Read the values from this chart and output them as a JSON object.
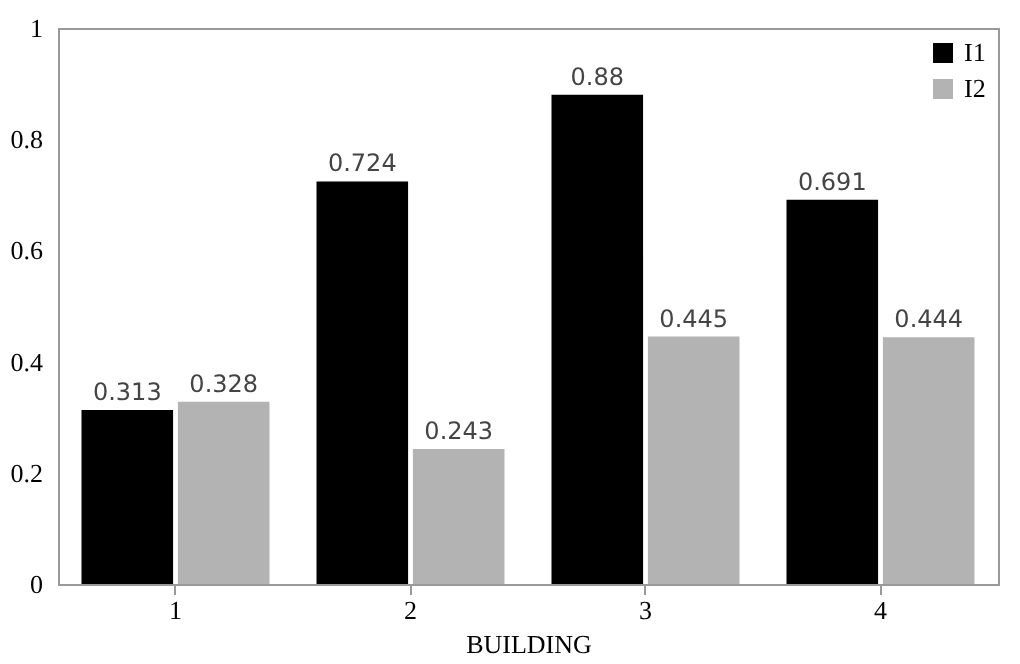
{
  "chart_data": {
    "type": "bar",
    "xlabel": "BUILDING",
    "categories": [
      "1",
      "2",
      "3",
      "4"
    ],
    "series": [
      {
        "name": "I1",
        "color": "#000000",
        "values": [
          0.313,
          0.724,
          0.88,
          0.691
        ]
      },
      {
        "name": "I2",
        "color": "#b3b3b3",
        "values": [
          0.328,
          0.243,
          0.445,
          0.444
        ]
      }
    ],
    "ylim": [
      0,
      1
    ],
    "yticks": [
      0,
      0.2,
      0.4,
      0.6,
      0.8,
      1
    ],
    "grid": false,
    "legend": "top right",
    "data_labels": true
  }
}
